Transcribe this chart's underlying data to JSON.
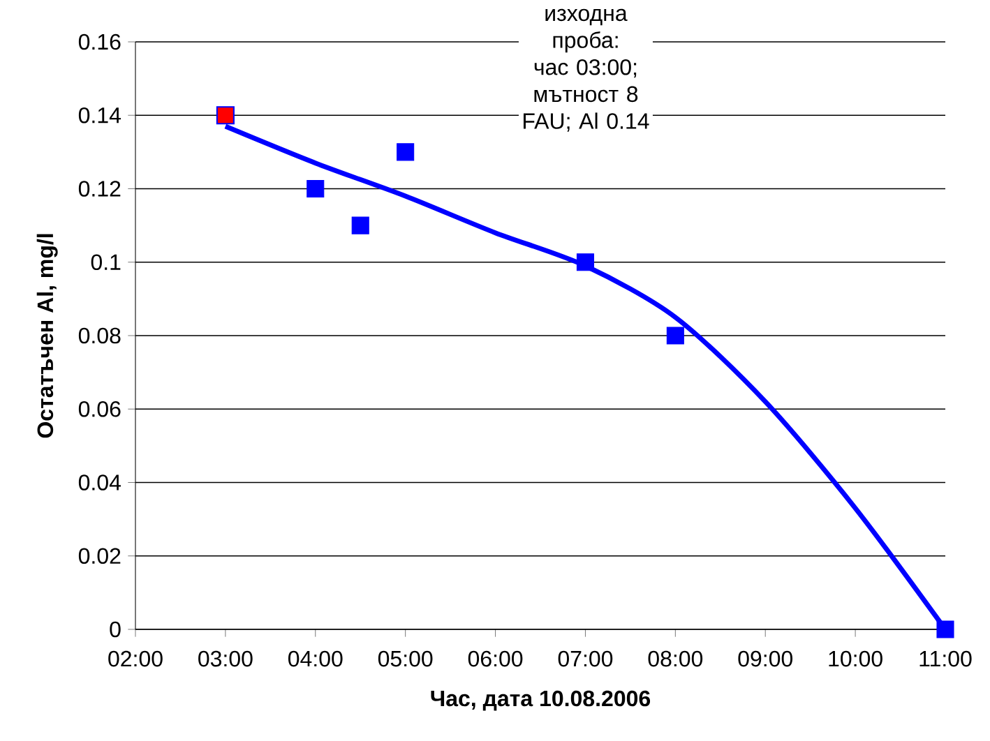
{
  "chart_data": {
    "type": "scatter",
    "xlabel": "Час, дата 10.08.2006",
    "ylabel": "Остатъчен Al, mg/l",
    "series": [
      {
        "type": "line",
        "color": "#0000ff",
        "marker": "none",
        "x": [
          3,
          4,
          5,
          6,
          7,
          8,
          9,
          10,
          11
        ],
        "values": [
          0.137,
          0.127,
          0.118,
          0.108,
          0.099,
          0.085,
          0.062,
          0.033,
          0
        ]
      },
      {
        "color": "#0000ff",
        "x": [
          4,
          4.5,
          5,
          7,
          8,
          11
        ],
        "values": [
          0.12,
          0.11,
          0.13,
          0.1,
          0.08,
          0
        ]
      },
      {
        "color": "#ff0000",
        "x": [
          3
        ],
        "values": [
          0.14
        ]
      }
    ],
    "annotations": [
      "изходна проба: час 03:00; мътност 8 FAU; Al 0.14"
    ],
    "xlim": [
      2,
      11
    ],
    "xticks": [
      {
        "value": 2,
        "label": "02:00"
      },
      {
        "value": 3,
        "label": "03:00"
      },
      {
        "value": 4,
        "label": "04:00"
      },
      {
        "value": 5,
        "label": "05:00"
      },
      {
        "value": 6,
        "label": "06:00"
      },
      {
        "value": 7,
        "label": "07:00"
      },
      {
        "value": 8,
        "label": "08:00"
      },
      {
        "value": 9,
        "label": "09:00"
      },
      {
        "value": 10,
        "label": "10:00"
      },
      {
        "value": 11,
        "label": "11:00"
      }
    ],
    "ylim": [
      0,
      0.16
    ],
    "yticks": [
      0,
      0.02,
      0.04,
      0.06,
      0.08,
      0.1,
      0.12,
      0.14,
      0.16
    ],
    "grid": "y",
    "marker": "square"
  }
}
